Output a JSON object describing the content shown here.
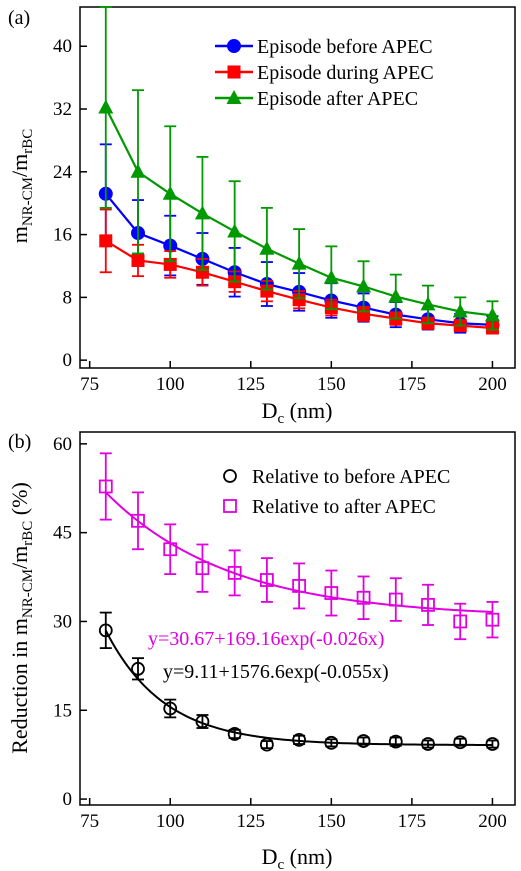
{
  "chart_data": [
    {
      "panel": "(a)",
      "type": "line",
      "xlabel": "Dc (nm)",
      "xlabel_main": "D",
      "xlabel_sub": "c",
      "xlabel_unit": " (nm)",
      "ylabel": "mNR-CM/mrBC",
      "xlim": [
        72,
        207
      ],
      "ylim": [
        -1,
        45
      ],
      "xticks": [
        75,
        100,
        125,
        150,
        175,
        200
      ],
      "xtick_labels": [
        "75",
        "100",
        "125",
        "150",
        "175",
        "200"
      ],
      "yticks": [
        0,
        8,
        16,
        24,
        32,
        40
      ],
      "ytick_labels": [
        "0",
        "8",
        "16",
        "24",
        "32",
        "40"
      ],
      "legend_position": "top-right",
      "grid": false,
      "x": [
        80,
        90,
        100,
        110,
        120,
        130,
        140,
        150,
        160,
        170,
        180,
        190,
        200
      ],
      "series": [
        {
          "name": "Episode before APEC",
          "color": "#0000ff",
          "marker": "circle",
          "values": [
            21.2,
            16.2,
            14.6,
            12.9,
            11.2,
            9.7,
            8.7,
            7.6,
            6.7,
            5.8,
            5.2,
            4.7,
            4.5
          ],
          "errors": [
            6.3,
            4.2,
            3.8,
            3.3,
            3.1,
            2.8,
            2.4,
            2.2,
            1.8,
            1.6,
            1.3,
            1.2,
            1.1
          ]
        },
        {
          "name": "Episode during APEC",
          "color": "#ff0000",
          "marker": "square",
          "values": [
            15.2,
            12.7,
            12.2,
            11.2,
            10.0,
            8.8,
            7.7,
            6.7,
            5.9,
            5.3,
            4.7,
            4.4,
            4.1
          ],
          "errors": [
            4.0,
            2.0,
            1.7,
            1.7,
            1.3,
            1.3,
            1.1,
            1.0,
            0.9,
            0.8,
            0.7,
            0.7,
            0.7
          ]
        },
        {
          "name": "Episode after APEC",
          "color": "#009900",
          "marker": "triangle",
          "values": [
            32.2,
            24.0,
            21.2,
            18.7,
            16.4,
            14.2,
            12.3,
            10.5,
            9.4,
            8.1,
            7.1,
            6.2,
            5.7
          ],
          "errors": [
            12.8,
            10.4,
            8.6,
            7.2,
            6.4,
            5.2,
            4.4,
            4.0,
            3.2,
            2.8,
            2.4,
            1.8,
            1.8
          ]
        }
      ]
    },
    {
      "panel": "(b)",
      "type": "scatter",
      "xlabel": "Dc (nm)",
      "xlabel_main": "D",
      "xlabel_sub": "c",
      "xlabel_unit": " (nm)",
      "ylabel": "Reduction in mNR-CM/mrBC (%)",
      "xlim": [
        72,
        207
      ],
      "ylim": [
        -1,
        62
      ],
      "xticks": [
        75,
        100,
        125,
        150,
        175,
        200
      ],
      "xtick_labels": [
        "75",
        "100",
        "125",
        "150",
        "175",
        "200"
      ],
      "yticks": [
        0,
        15,
        30,
        45,
        60
      ],
      "ytick_labels": [
        "0",
        "15",
        "30",
        "45",
        "60"
      ],
      "legend_position": "top-right",
      "grid": false,
      "x": [
        80,
        90,
        100,
        110,
        120,
        130,
        140,
        150,
        160,
        170,
        180,
        190,
        200
      ],
      "series": [
        {
          "name": "Relative to before APEC",
          "color": "#000000",
          "marker": "open-circle",
          "values": [
            28.5,
            22.0,
            15.3,
            13.1,
            11.0,
            9.2,
            10.0,
            9.5,
            9.8,
            9.7,
            9.3,
            9.6,
            9.3
          ],
          "errors": [
            3.0,
            1.8,
            1.5,
            1.1,
            0.7,
            0.6,
            0.7,
            0.6,
            0.6,
            0.7,
            0.6,
            0.6,
            0.6
          ]
        },
        {
          "name": "Relative to after APEC",
          "color": "#e000e0",
          "marker": "open-square",
          "values": [
            52.8,
            47.0,
            42.2,
            39.0,
            38.2,
            37.0,
            36.0,
            34.8,
            34.0,
            33.7,
            32.8,
            30.0,
            30.3
          ],
          "errors": [
            5.6,
            4.8,
            4.2,
            4.0,
            3.8,
            3.7,
            3.8,
            3.8,
            3.6,
            3.6,
            3.4,
            3.0,
            3.0
          ]
        }
      ],
      "fits": [
        {
          "label": "y=9.11+1576.6exp(-0.055x)",
          "a": 9.11,
          "b": 1576.6,
          "k": -0.055,
          "color": "#000000"
        },
        {
          "label": "y=30.67+169.16exp(-0.026x)",
          "a": 30.67,
          "b": 169.16,
          "k": -0.026,
          "color": "#e000e0"
        }
      ]
    }
  ]
}
